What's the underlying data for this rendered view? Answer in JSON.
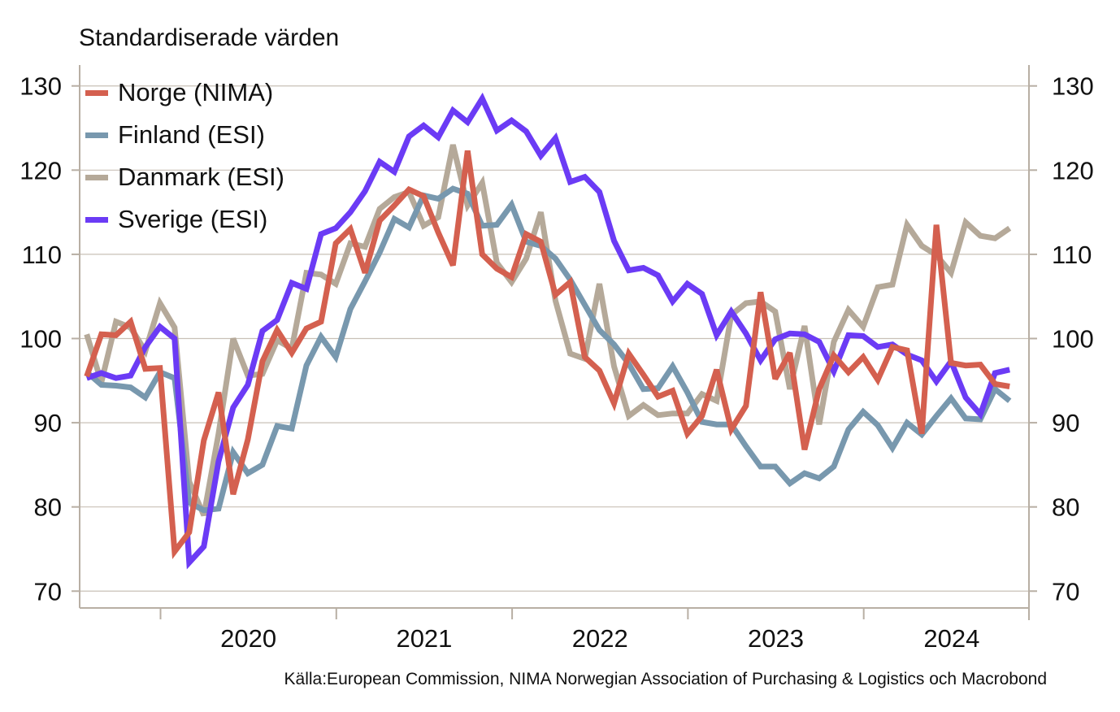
{
  "chart_data": {
    "type": "line",
    "ylabel": "Standardiserade värden",
    "source": "Källa:European Commission, NIMA Norwegian Association of Purchasing & Logistics och Macrobond",
    "ylim": [
      68,
      132
    ],
    "yticks": [
      70,
      80,
      90,
      100,
      110,
      120,
      130
    ],
    "xlim": [
      2019.54,
      2024.94
    ],
    "x_year_ticks": [
      2020,
      2021,
      2022,
      2023,
      2024
    ],
    "x_tick_labels": [
      "2020",
      "2021",
      "2022",
      "2023",
      "2024"
    ],
    "grid": true,
    "legend_position": "top-left",
    "x_start": 2019.58,
    "x_step_months": 1,
    "series": [
      {
        "name": "Norge (NIMA)",
        "color": "#D4604F",
        "values": [
          95.5,
          100.5,
          100.4,
          102.0,
          96.4,
          96.5,
          74.7,
          77.0,
          87.9,
          93.6,
          81.5,
          88.0,
          97.3,
          101.0,
          98.3,
          101.2,
          102.0,
          111.3,
          113.0,
          107.8,
          114.0,
          115.8,
          117.7,
          116.9,
          112.6,
          108.7,
          122.3,
          110.0,
          108.3,
          107.3,
          112.4,
          111.5,
          105.2,
          106.7,
          97.8,
          96.2,
          92.3,
          98.2,
          95.7,
          93.1,
          93.8,
          88.7,
          90.8,
          96.3,
          89.2,
          92.0,
          105.5,
          95.2,
          98.3,
          86.8,
          94.0,
          98.0,
          96.0,
          97.8,
          95.1,
          99.0,
          98.6,
          88.7,
          113.5,
          97.1,
          96.8,
          96.9,
          94.6,
          94.3
        ]
      },
      {
        "name": "Finland (ESI)",
        "color": "#7898AE",
        "values": [
          96.0,
          94.5,
          94.4,
          94.2,
          93.0,
          96.0,
          95.3,
          80.5,
          79.6,
          79.8,
          86.5,
          84.0,
          85.0,
          89.6,
          89.3,
          96.8,
          100.2,
          97.8,
          103.5,
          106.8,
          110.2,
          114.2,
          113.2,
          117.0,
          116.6,
          117.8,
          117.2,
          113.4,
          113.5,
          115.9,
          111.5,
          111.0,
          109.5,
          107.0,
          104.0,
          101.0,
          99.3,
          97.0,
          94.0,
          94.1,
          96.7,
          93.6,
          90.1,
          89.8,
          89.8,
          87.2,
          84.8,
          84.8,
          82.8,
          84.0,
          83.4,
          84.8,
          89.2,
          91.3,
          89.7,
          87.0,
          90.0,
          88.6,
          90.8,
          92.9,
          90.5,
          90.4,
          94.0,
          92.6
        ]
      },
      {
        "name": "Danmark (ESI)",
        "color": "#B5A999",
        "values": [
          100.5,
          94.8,
          102.0,
          101.3,
          98.5,
          104.2,
          101.3,
          83.0,
          79.0,
          88.7,
          100.0,
          95.6,
          95.8,
          99.8,
          98.8,
          107.8,
          107.6,
          106.5,
          111.3,
          110.9,
          115.4,
          116.8,
          117.4,
          113.4,
          114.4,
          123.0,
          115.8,
          118.5,
          109.0,
          106.7,
          109.5,
          115.0,
          104.5,
          98.2,
          97.6,
          106.5,
          96.7,
          90.8,
          92.1,
          90.9,
          91.1,
          91.1,
          93.4,
          92.6,
          102.8,
          104.2,
          104.4,
          103.2,
          94.0,
          101.5,
          89.8,
          99.6,
          103.4,
          101.4,
          106.1,
          106.4,
          113.5,
          111.0,
          109.9,
          107.8,
          113.8,
          112.2,
          111.9,
          113.1
        ]
      },
      {
        "name": "Sverige (ESI)",
        "color": "#6B3BF5",
        "values": [
          95.3,
          95.9,
          95.3,
          95.6,
          99.0,
          101.4,
          100.0,
          73.4,
          75.3,
          85.4,
          91.8,
          94.5,
          100.9,
          102.2,
          106.6,
          105.9,
          112.4,
          113.1,
          115.0,
          117.5,
          121.0,
          119.8,
          124.0,
          125.3,
          123.9,
          127.1,
          125.7,
          128.5,
          124.7,
          125.9,
          124.6,
          121.7,
          123.8,
          118.6,
          119.2,
          117.4,
          111.6,
          108.1,
          108.4,
          107.5,
          104.4,
          106.5,
          105.3,
          100.4,
          103.2,
          100.6,
          97.4,
          99.9,
          100.6,
          100.5,
          99.6,
          96.1,
          100.4,
          100.3,
          99.0,
          99.3,
          98.1,
          97.4,
          94.9,
          97.3,
          93.0,
          91.0,
          95.9,
          96.3
        ]
      }
    ]
  }
}
